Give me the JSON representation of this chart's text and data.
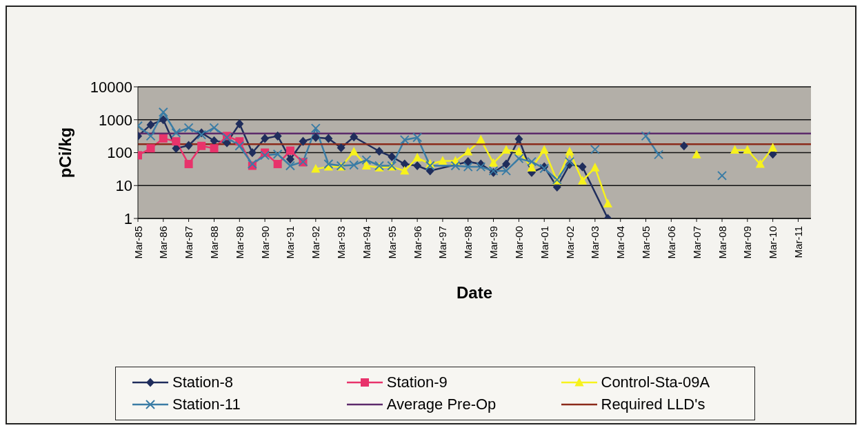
{
  "chart_data": {
    "type": "line",
    "xlabel": "Date",
    "ylabel": "pCi/kg",
    "log": true,
    "grid": "y",
    "legend": "bottom",
    "ylim": [
      1,
      10000
    ],
    "yticks": [
      1,
      10,
      100,
      1000,
      10000
    ],
    "xlim": [
      "1985-03",
      "2011-09"
    ],
    "xticks": [
      {
        "value": "1985-03",
        "label": "Mar-85"
      },
      {
        "value": "1986-03",
        "label": "Mar-86"
      },
      {
        "value": "1987-03",
        "label": "Mar-87"
      },
      {
        "value": "1988-03",
        "label": "Mar-88"
      },
      {
        "value": "1989-03",
        "label": "Mar-89"
      },
      {
        "value": "1990-03",
        "label": "Mar-90"
      },
      {
        "value": "1991-03",
        "label": "Mar-91"
      },
      {
        "value": "1992-03",
        "label": "Mar-92"
      },
      {
        "value": "1993-03",
        "label": "Mar-93"
      },
      {
        "value": "1994-03",
        "label": "Mar-94"
      },
      {
        "value": "1995-03",
        "label": "Mar-95"
      },
      {
        "value": "1996-03",
        "label": "Mar-96"
      },
      {
        "value": "1997-03",
        "label": "Mar-97"
      },
      {
        "value": "1998-03",
        "label": "Mar-98"
      },
      {
        "value": "1999-03",
        "label": "Mar-99"
      },
      {
        "value": "2000-03",
        "label": "Mar-00"
      },
      {
        "value": "2001-03",
        "label": "Mar-01"
      },
      {
        "value": "2002-03",
        "label": "Mar-02"
      },
      {
        "value": "2003-03",
        "label": "Mar-03"
      },
      {
        "value": "2004-03",
        "label": "Mar-04"
      },
      {
        "value": "2005-03",
        "label": "Mar-05"
      },
      {
        "value": "2006-03",
        "label": "Mar-06"
      },
      {
        "value": "2007-03",
        "label": "Mar-07"
      },
      {
        "value": "2008-03",
        "label": "Mar-08"
      },
      {
        "value": "2009-03",
        "label": "Mar-09"
      },
      {
        "value": "2010-03",
        "label": "Mar-10"
      },
      {
        "value": "2011-03",
        "label": "Mar-11"
      }
    ],
    "series": [
      {
        "name": "Station-8",
        "color": "#1f2d5c",
        "marker": "diamond",
        "x": [
          "1985-03",
          "1985-09",
          "1986-03",
          "1986-09",
          "1987-03",
          "1987-09",
          "1988-03",
          "1988-09",
          "1989-03",
          "1989-09",
          "1990-03",
          "1990-09",
          "1991-03",
          "1991-09",
          "1992-03",
          "1992-09",
          "1993-03",
          "1993-09",
          "1994-09",
          "1995-03",
          "1995-09",
          "1996-03",
          "1996-09",
          "1998-03",
          "1998-09",
          "1999-03",
          "1999-09",
          "2000-03",
          "2000-09",
          "2001-03",
          "2001-09",
          "2002-03",
          "2002-09",
          "2003-09",
          "2005-01",
          "2006-09",
          "2008-06",
          "2010-03"
        ],
        "values": [
          320,
          700,
          1000,
          135,
          165,
          400,
          230,
          200,
          750,
          100,
          270,
          320,
          63,
          220,
          290,
          270,
          140,
          300,
          110,
          75,
          45,
          40,
          28,
          53,
          45,
          25,
          45,
          260,
          25,
          37,
          9,
          44,
          37,
          1,
          null,
          160,
          null,
          90
        ]
      },
      {
        "name": "Station-9",
        "color": "#e8336b",
        "marker": "square",
        "x": [
          "1985-03",
          "1985-09",
          "1986-03",
          "1986-09",
          "1987-03",
          "1987-09",
          "1988-03",
          "1988-09",
          "1989-03",
          "1989-09",
          "1990-03",
          "1990-09",
          "1991-03",
          "1991-09"
        ],
        "values": [
          83,
          135,
          270,
          220,
          45,
          160,
          135,
          320,
          220,
          40,
          100,
          45,
          115,
          51
        ]
      },
      {
        "name": "Control-Sta-09A",
        "color": "#f7f21c",
        "marker": "triangle",
        "x": [
          "1992-03",
          "1992-09",
          "1993-03",
          "1993-09",
          "1994-03",
          "1994-09",
          "1995-03",
          "1995-09",
          "1996-03",
          "1996-09",
          "1997-03",
          "1997-09",
          "1998-03",
          "1998-09",
          "1999-03",
          "1999-09",
          "2000-03",
          "2000-09",
          "2001-03",
          "2001-09",
          "2002-03",
          "2002-09",
          "2003-03",
          "2003-09",
          "2005-06",
          "2007-03",
          "2008-03",
          "2008-09",
          "2009-03",
          "2009-09",
          "2010-03"
        ],
        "values": [
          32,
          37,
          37,
          107,
          40,
          35,
          37,
          28,
          70,
          45,
          56,
          56,
          107,
          245,
          48,
          120,
          107,
          35,
          120,
          14,
          107,
          14,
          35,
          2.8,
          null,
          87,
          null,
          120,
          120,
          45,
          140
        ]
      },
      {
        "name": "Station-11",
        "color": "#3a7ca5",
        "marker": "cross",
        "x": [
          "1985-03",
          "1985-09",
          "1986-03",
          "1986-09",
          "1987-03",
          "1987-09",
          "1988-03",
          "1988-09",
          "1989-03",
          "1989-09",
          "1990-03",
          "1990-09",
          "1991-03",
          "1991-09",
          "1992-03",
          "1992-09",
          "1993-03",
          "1993-09",
          "1994-03",
          "1994-09",
          "1995-03",
          "1995-09",
          "1996-03",
          "1996-09",
          "1997-09",
          "1998-03",
          "1998-09",
          "1999-03",
          "1999-09",
          "2000-03",
          "2000-09",
          "2001-03",
          "2001-09",
          "2002-03",
          "2002-09",
          "2003-03",
          "2004-03",
          "2005-03",
          "2005-09",
          "2007-01",
          "2008-03"
        ],
        "values": [
          650,
          320,
          1700,
          400,
          570,
          350,
          570,
          290,
          160,
          45,
          83,
          90,
          40,
          53,
          550,
          45,
          40,
          42,
          60,
          40,
          40,
          245,
          290,
          40,
          40,
          37,
          37,
          28,
          28,
          66,
          53,
          33,
          15,
          53,
          null,
          125,
          null,
          320,
          87,
          null,
          20
        ]
      },
      {
        "name": "Average Pre-Op",
        "color": "#5c2a6b",
        "marker": "none",
        "x": [
          "1985-03",
          "2011-09"
        ],
        "values": [
          380,
          380
        ]
      },
      {
        "name": "Required LLD's",
        "color": "#8b2a1a",
        "marker": "none",
        "x": [
          "1985-03",
          "2011-09"
        ],
        "values": [
          180,
          180
        ]
      }
    ]
  }
}
